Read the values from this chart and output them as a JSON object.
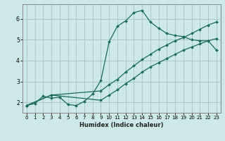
{
  "title": "",
  "xlabel": "Humidex (Indice chaleur)",
  "bg_color": "#cde8e8",
  "grid_color": "#a8c8c8",
  "line_color": "#1a6b5a",
  "xlim": [
    -0.5,
    23.5
  ],
  "ylim": [
    1.5,
    6.7
  ],
  "yticks": [
    2,
    3,
    4,
    5,
    6
  ],
  "xticks": [
    0,
    1,
    2,
    3,
    4,
    5,
    6,
    7,
    8,
    9,
    10,
    11,
    12,
    13,
    14,
    15,
    16,
    17,
    18,
    19,
    20,
    21,
    22,
    23
  ],
  "curve1_x": [
    0,
    1,
    2,
    3,
    4,
    5,
    6,
    7,
    8,
    9,
    10,
    11,
    12,
    13,
    14,
    15,
    16,
    17,
    18,
    19,
    20,
    21,
    22,
    23
  ],
  "curve1_y": [
    1.85,
    1.95,
    2.3,
    2.2,
    2.25,
    1.9,
    1.85,
    2.05,
    2.4,
    3.05,
    4.9,
    5.65,
    5.9,
    6.3,
    6.4,
    5.85,
    5.55,
    5.3,
    5.2,
    5.15,
    5.0,
    4.95,
    4.95,
    4.5
  ],
  "curve2_x": [
    0,
    3,
    9,
    10,
    11,
    12,
    13,
    14,
    15,
    16,
    17,
    18,
    19,
    20,
    21,
    22,
    23
  ],
  "curve2_y": [
    1.85,
    2.35,
    2.55,
    2.85,
    3.1,
    3.45,
    3.75,
    4.05,
    4.3,
    4.55,
    4.75,
    4.95,
    5.1,
    5.3,
    5.5,
    5.7,
    5.85
  ],
  "curve3_x": [
    0,
    3,
    9,
    10,
    11,
    12,
    13,
    14,
    15,
    16,
    17,
    18,
    19,
    20,
    21,
    22,
    23
  ],
  "curve3_y": [
    1.85,
    2.35,
    2.1,
    2.35,
    2.6,
    2.9,
    3.15,
    3.45,
    3.7,
    3.9,
    4.1,
    4.3,
    4.5,
    4.65,
    4.8,
    4.95,
    5.05
  ]
}
